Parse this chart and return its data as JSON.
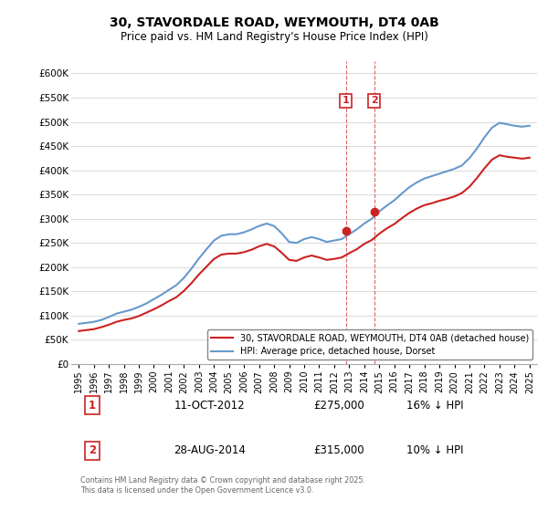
{
  "title": "30, STAVORDALE ROAD, WEYMOUTH, DT4 0AB",
  "subtitle": "Price paid vs. HM Land Registry's House Price Index (HPI)",
  "xlabel": "",
  "ylabel": "",
  "ylim": [
    0,
    625000
  ],
  "yticks": [
    0,
    50000,
    100000,
    150000,
    200000,
    250000,
    300000,
    350000,
    400000,
    450000,
    500000,
    550000,
    600000
  ],
  "ytick_labels": [
    "£0",
    "£50K",
    "£100K",
    "£150K",
    "£200K",
    "£250K",
    "£300K",
    "£350K",
    "£400K",
    "£450K",
    "£500K",
    "£550K",
    "£600K"
  ],
  "hpi_color": "#6699cc",
  "price_color": "#cc2222",
  "sale1_date_x": 2012.78,
  "sale1_price": 275000,
  "sale1_label": "1",
  "sale2_date_x": 2014.66,
  "sale2_price": 315000,
  "sale2_label": "2",
  "vline_color": "#cc2222",
  "annotation_box_color": "#cc2222",
  "legend_label_price": "30, STAVORDALE ROAD, WEYMOUTH, DT4 0AB (detached house)",
  "legend_label_hpi": "HPI: Average price, detached house, Dorset",
  "table_rows": [
    {
      "num": "1",
      "date": "11-OCT-2012",
      "price": "£275,000",
      "hpi": "16% ↓ HPI"
    },
    {
      "num": "2",
      "date": "28-AUG-2014",
      "price": "£315,000",
      "hpi": "10% ↓ HPI"
    }
  ],
  "footnote": "Contains HM Land Registry data © Crown copyright and database right 2025.\nThis data is licensed under the Open Government Licence v3.0.",
  "background_color": "#ffffff",
  "grid_color": "#dddddd",
  "hpi_years": [
    1995,
    1995.5,
    1996,
    1996.5,
    1997,
    1997.5,
    1998,
    1998.5,
    1999,
    1999.5,
    2000,
    2000.5,
    2001,
    2001.5,
    2002,
    2002.5,
    2003,
    2003.5,
    2004,
    2004.5,
    2005,
    2005.5,
    2006,
    2006.5,
    2007,
    2007.5,
    2008,
    2008.5,
    2009,
    2009.5,
    2010,
    2010.5,
    2011,
    2011.5,
    2012,
    2012.5,
    2013,
    2013.5,
    2014,
    2014.5,
    2015,
    2015.5,
    2016,
    2016.5,
    2017,
    2017.5,
    2018,
    2018.5,
    2019,
    2019.5,
    2020,
    2020.5,
    2021,
    2021.5,
    2022,
    2022.5,
    2023,
    2023.5,
    2024,
    2024.5,
    2025
  ],
  "hpi_values": [
    83000,
    85000,
    87000,
    91000,
    97000,
    104000,
    108000,
    112000,
    118000,
    125000,
    134000,
    143000,
    153000,
    163000,
    178000,
    197000,
    218000,
    237000,
    255000,
    265000,
    268000,
    268000,
    272000,
    278000,
    285000,
    290000,
    285000,
    270000,
    252000,
    250000,
    258000,
    262000,
    258000,
    252000,
    255000,
    258000,
    268000,
    278000,
    290000,
    300000,
    315000,
    327000,
    338000,
    352000,
    365000,
    375000,
    383000,
    388000,
    393000,
    398000,
    403000,
    410000,
    425000,
    445000,
    468000,
    488000,
    498000,
    495000,
    492000,
    490000,
    492000
  ],
  "price_years": [
    1995,
    1995.5,
    1996,
    1996.5,
    1997,
    1997.5,
    1998,
    1998.5,
    1999,
    1999.5,
    2000,
    2000.5,
    2001,
    2001.5,
    2002,
    2002.5,
    2003,
    2003.5,
    2004,
    2004.5,
    2005,
    2005.5,
    2006,
    2006.5,
    2007,
    2007.5,
    2008,
    2008.5,
    2009,
    2009.5,
    2010,
    2010.5,
    2011,
    2011.5,
    2012,
    2012.5,
    2013,
    2013.5,
    2014,
    2014.5,
    2015,
    2015.5,
    2016,
    2016.5,
    2017,
    2017.5,
    2018,
    2018.5,
    2019,
    2019.5,
    2020,
    2020.5,
    2021,
    2021.5,
    2022,
    2022.5,
    2023,
    2023.5,
    2024,
    2024.5,
    2025
  ],
  "price_values": [
    68000,
    70000,
    72000,
    76000,
    81000,
    87000,
    91000,
    94000,
    99000,
    106000,
    113000,
    121000,
    130000,
    138000,
    151000,
    167000,
    185000,
    201000,
    217000,
    226000,
    228000,
    228000,
    231000,
    236000,
    243000,
    248000,
    243000,
    230000,
    215000,
    213000,
    220000,
    224000,
    220000,
    215000,
    217000,
    220000,
    229000,
    237000,
    248000,
    256000,
    269000,
    280000,
    289000,
    301000,
    312000,
    321000,
    328000,
    332000,
    337000,
    341000,
    346000,
    353000,
    366000,
    384000,
    404000,
    422000,
    431000,
    428000,
    426000,
    424000,
    426000
  ],
  "xtick_years": [
    1995,
    1996,
    1997,
    1998,
    1999,
    2000,
    2001,
    2002,
    2003,
    2004,
    2005,
    2006,
    2007,
    2008,
    2009,
    2010,
    2011,
    2012,
    2013,
    2014,
    2015,
    2016,
    2017,
    2018,
    2019,
    2020,
    2021,
    2022,
    2023,
    2024,
    2025
  ],
  "xlim": [
    1994.5,
    2025.5
  ]
}
